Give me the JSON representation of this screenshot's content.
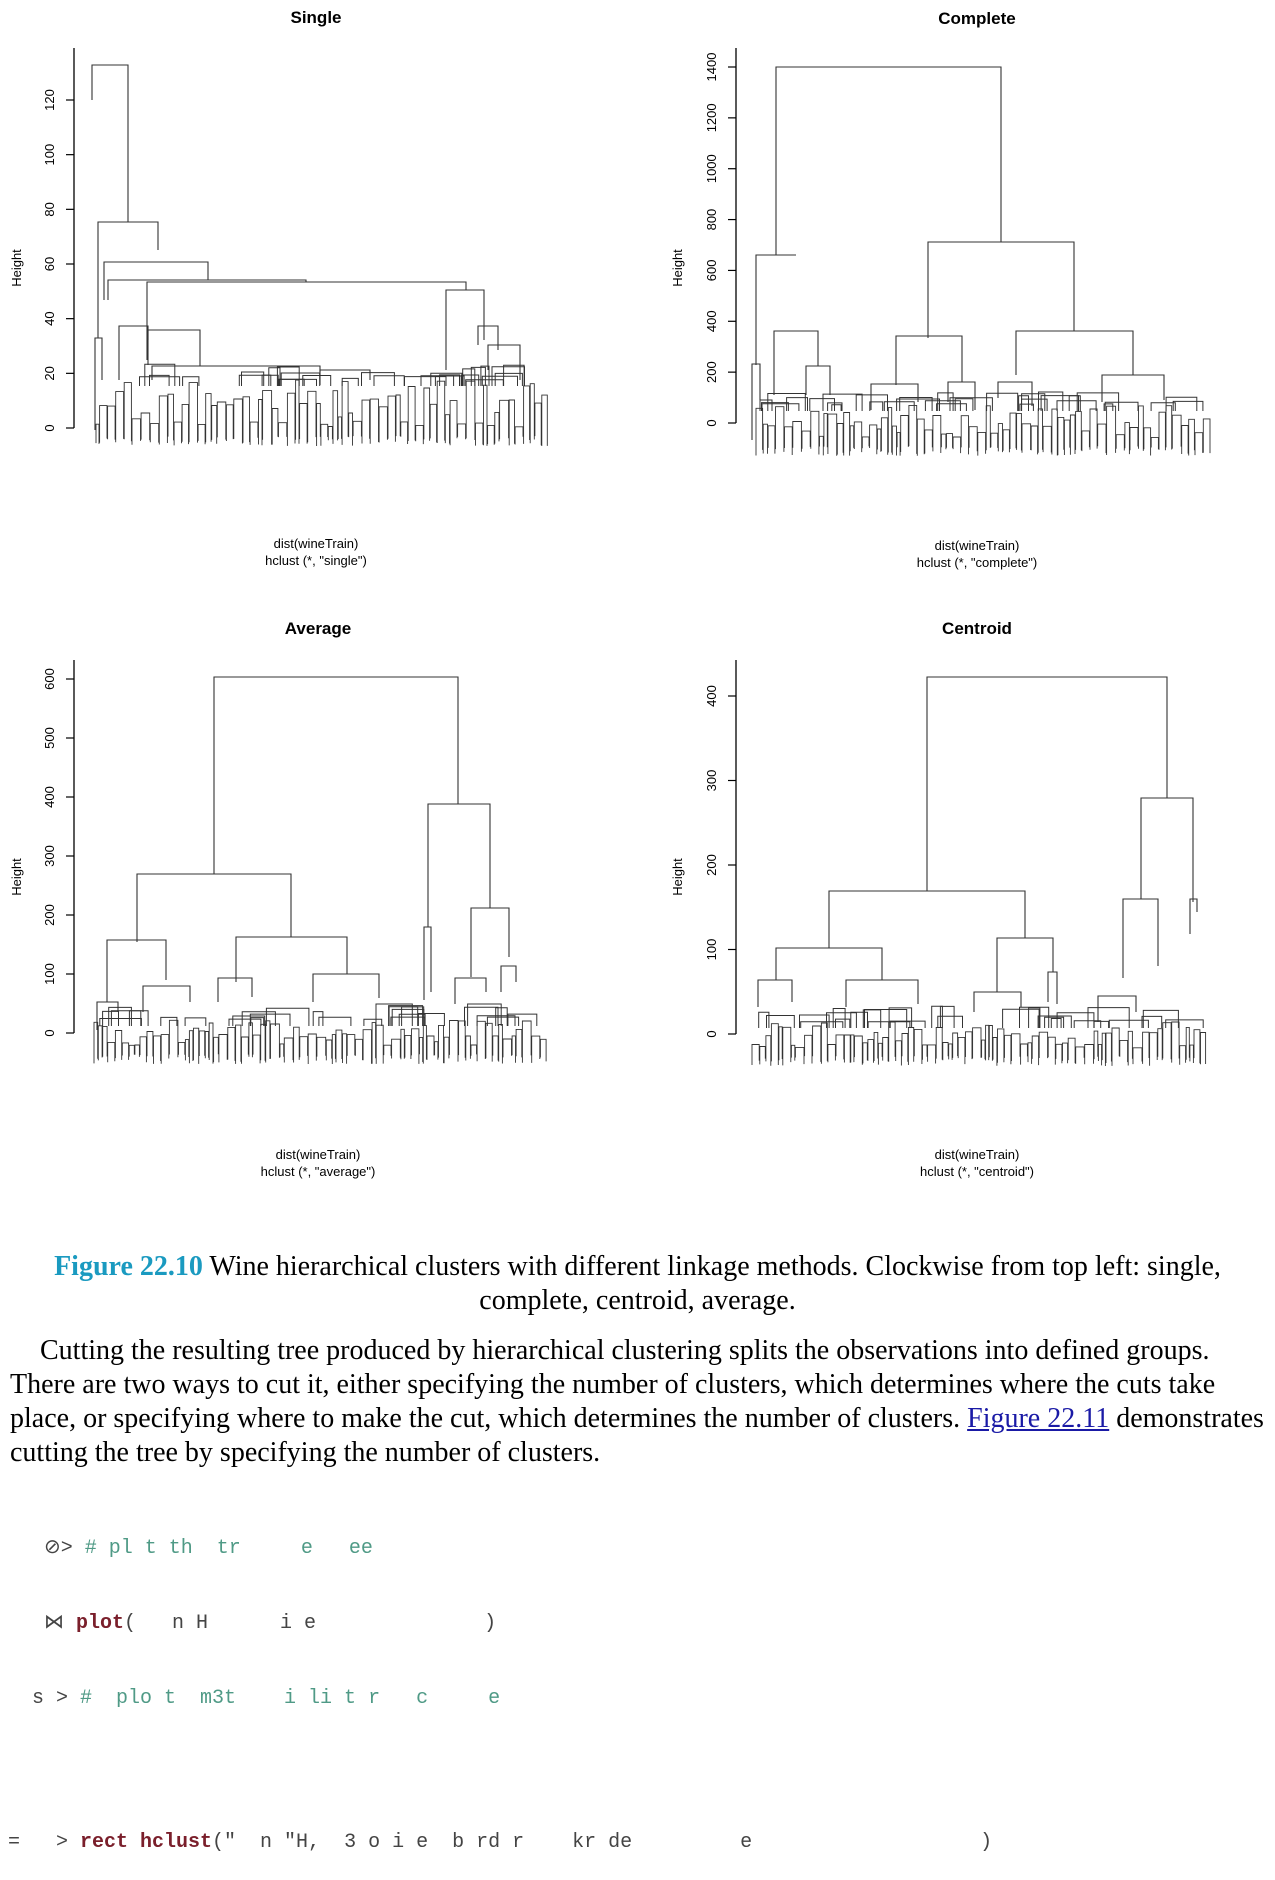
{
  "panels": [
    {
      "id": "single",
      "title": "Single",
      "ylabel": "Height",
      "ticks": [
        "0",
        "20",
        "40",
        "60",
        "80",
        "100",
        "120"
      ],
      "sub1": "dist(wineTrain)",
      "sub2": "hclust (*, \"single\")"
    },
    {
      "id": "complete",
      "title": "Complete",
      "ylabel": "Height",
      "ticks": [
        "0",
        "200",
        "400",
        "600",
        "800",
        "1000",
        "1200",
        "1400"
      ],
      "sub1": "dist(wineTrain)",
      "sub2": "hclust (*, \"complete\")"
    },
    {
      "id": "average",
      "title": "Average",
      "ylabel": "Height",
      "ticks": [
        "0",
        "100",
        "200",
        "300",
        "400",
        "500",
        "600"
      ],
      "sub1": "dist(wineTrain)",
      "sub2": "hclust (*, \"average\")"
    },
    {
      "id": "centroid",
      "title": "Centroid",
      "ylabel": "Height",
      "ticks": [
        "0",
        "100",
        "200",
        "300",
        "400"
      ],
      "sub1": "dist(wineTrain)",
      "sub2": "hclust (*, \"centroid\")"
    }
  ],
  "caption": {
    "label": "Figure 22.10",
    "text": " Wine hierarchical clusters with different linkage methods. Clockwise from top left: single, complete, centroid, average."
  },
  "paragraph": {
    "text": "Cutting the resulting tree produced by hierarchical clustering splits the observations into defined groups. There are two ways to cut it, either specifying the number of clusters, which determines where the cuts take place, or specifying where to make the cut, which determines the number of clusters. ",
    "link": "Figure 22.11",
    "tail": " demonstrates cutting the tree by specifying the number of clusters."
  },
  "code": {
    "l1_pre": "   ⊘> ",
    "l1_cm": "# pl t th  tr     e   ee",
    "l2_pre": "   ⋈ ",
    "l2_kw": "plot",
    "l2_rest": "(   n H      i e              )",
    "l3_pre": "  s > ",
    "l3_cm": "#  plo t  m3t    i li t r   c     e",
    "l4_pre": "=   > ",
    "l4_kw": "rect hclust",
    "l4_rest": "(\"  n \"H,  3 o i e  b rd r    kr de         e                   )"
  }
}
